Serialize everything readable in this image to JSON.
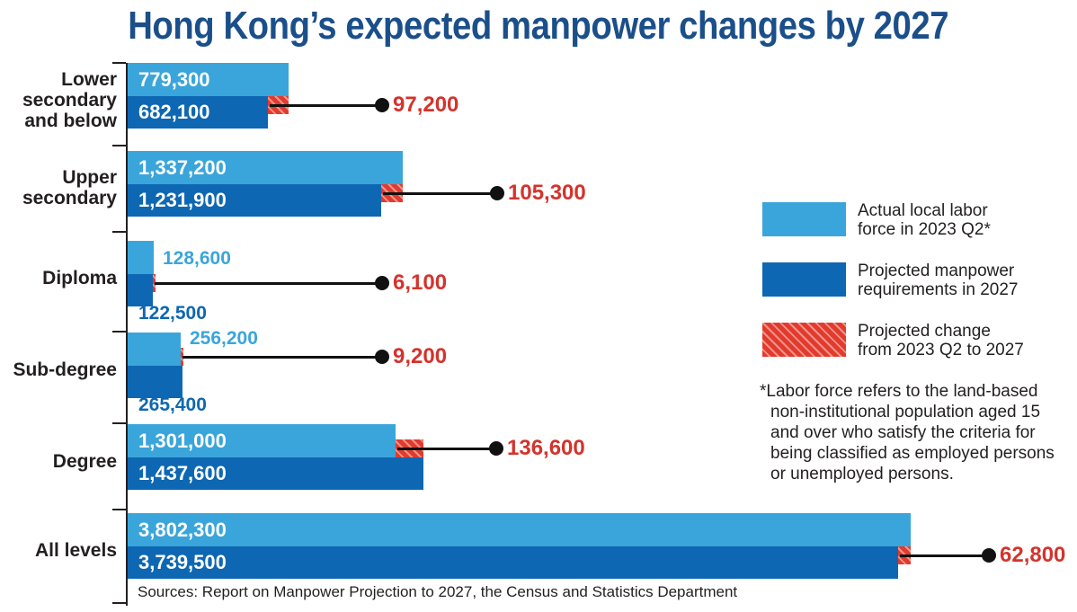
{
  "title": "Hong Kong’s expected manpower changes by 2027",
  "colors": {
    "actual_bar": "#3aa5db",
    "projected_bar": "#0e67b2",
    "change_fill": "#e23b2e",
    "change_stripe": "#f0938a",
    "change_text": "#d4332c",
    "title_text": "#1b4f8a",
    "text": "#231f20",
    "line": "#111111"
  },
  "chart_data": {
    "type": "bar",
    "orientation": "horizontal",
    "title": "Hong Kong’s expected manpower changes by 2027",
    "categories": [
      "Lower secondary and below",
      "Upper secondary",
      "Diploma",
      "Sub-degree",
      "Degree",
      "All levels"
    ],
    "series": [
      {
        "name": "Actual local labor force in 2023 Q2*",
        "values": [
          779300,
          1337200,
          128600,
          256200,
          1301000,
          3802300
        ]
      },
      {
        "name": "Projected manpower requirements in 2027",
        "values": [
          682100,
          1231900,
          122500,
          265400,
          1437600,
          3739500
        ]
      },
      {
        "name": "Projected change from 2023 Q2 to 2027",
        "values": [
          97200,
          105300,
          6100,
          9200,
          136600,
          62800
        ]
      }
    ],
    "xlim": [
      0,
      3802300
    ],
    "grid": false,
    "legend_position": "right",
    "rows": [
      {
        "category_lines": [
          "Lower",
          "secondary",
          "and below"
        ],
        "actual_label": "779,300",
        "projected_label": "682,100",
        "change_label": "97,200"
      },
      {
        "category_lines": [
          "Upper",
          "secondary"
        ],
        "actual_label": "1,337,200",
        "projected_label": "1,231,900",
        "change_label": "105,300"
      },
      {
        "category_lines": [
          "Diploma"
        ],
        "actual_label": "128,600",
        "projected_label": "122,500",
        "change_label": "6,100"
      },
      {
        "category_lines": [
          "Sub-degree"
        ],
        "actual_label": "256,200",
        "projected_label": "265,400",
        "change_label": "9,200"
      },
      {
        "category_lines": [
          "Degree"
        ],
        "actual_label": "1,301,000",
        "projected_label": "1,437,600",
        "change_label": "136,600"
      },
      {
        "category_lines": [
          "All levels"
        ],
        "actual_label": "3,802,300",
        "projected_label": "3,739,500",
        "change_label": "62,800"
      }
    ]
  },
  "legend": {
    "items": [
      {
        "swatch": "actual",
        "lines": [
          "Actual local labor",
          "force in 2023 Q2*"
        ]
      },
      {
        "swatch": "projected",
        "lines": [
          "Projected manpower",
          "requirements in 2027"
        ]
      },
      {
        "swatch": "change",
        "lines": [
          "Projected change",
          "from 2023 Q2 to 2027"
        ]
      }
    ]
  },
  "footnote_lines": [
    "*Labor force refers to the land-based",
    "non-institutional population aged 15",
    "and over who satisfy the criteria for",
    "being classified as employed persons",
    "or unemployed persons."
  ],
  "source": "Sources: Report on Manpower Projection to 2027, the Census and Statistics Department"
}
